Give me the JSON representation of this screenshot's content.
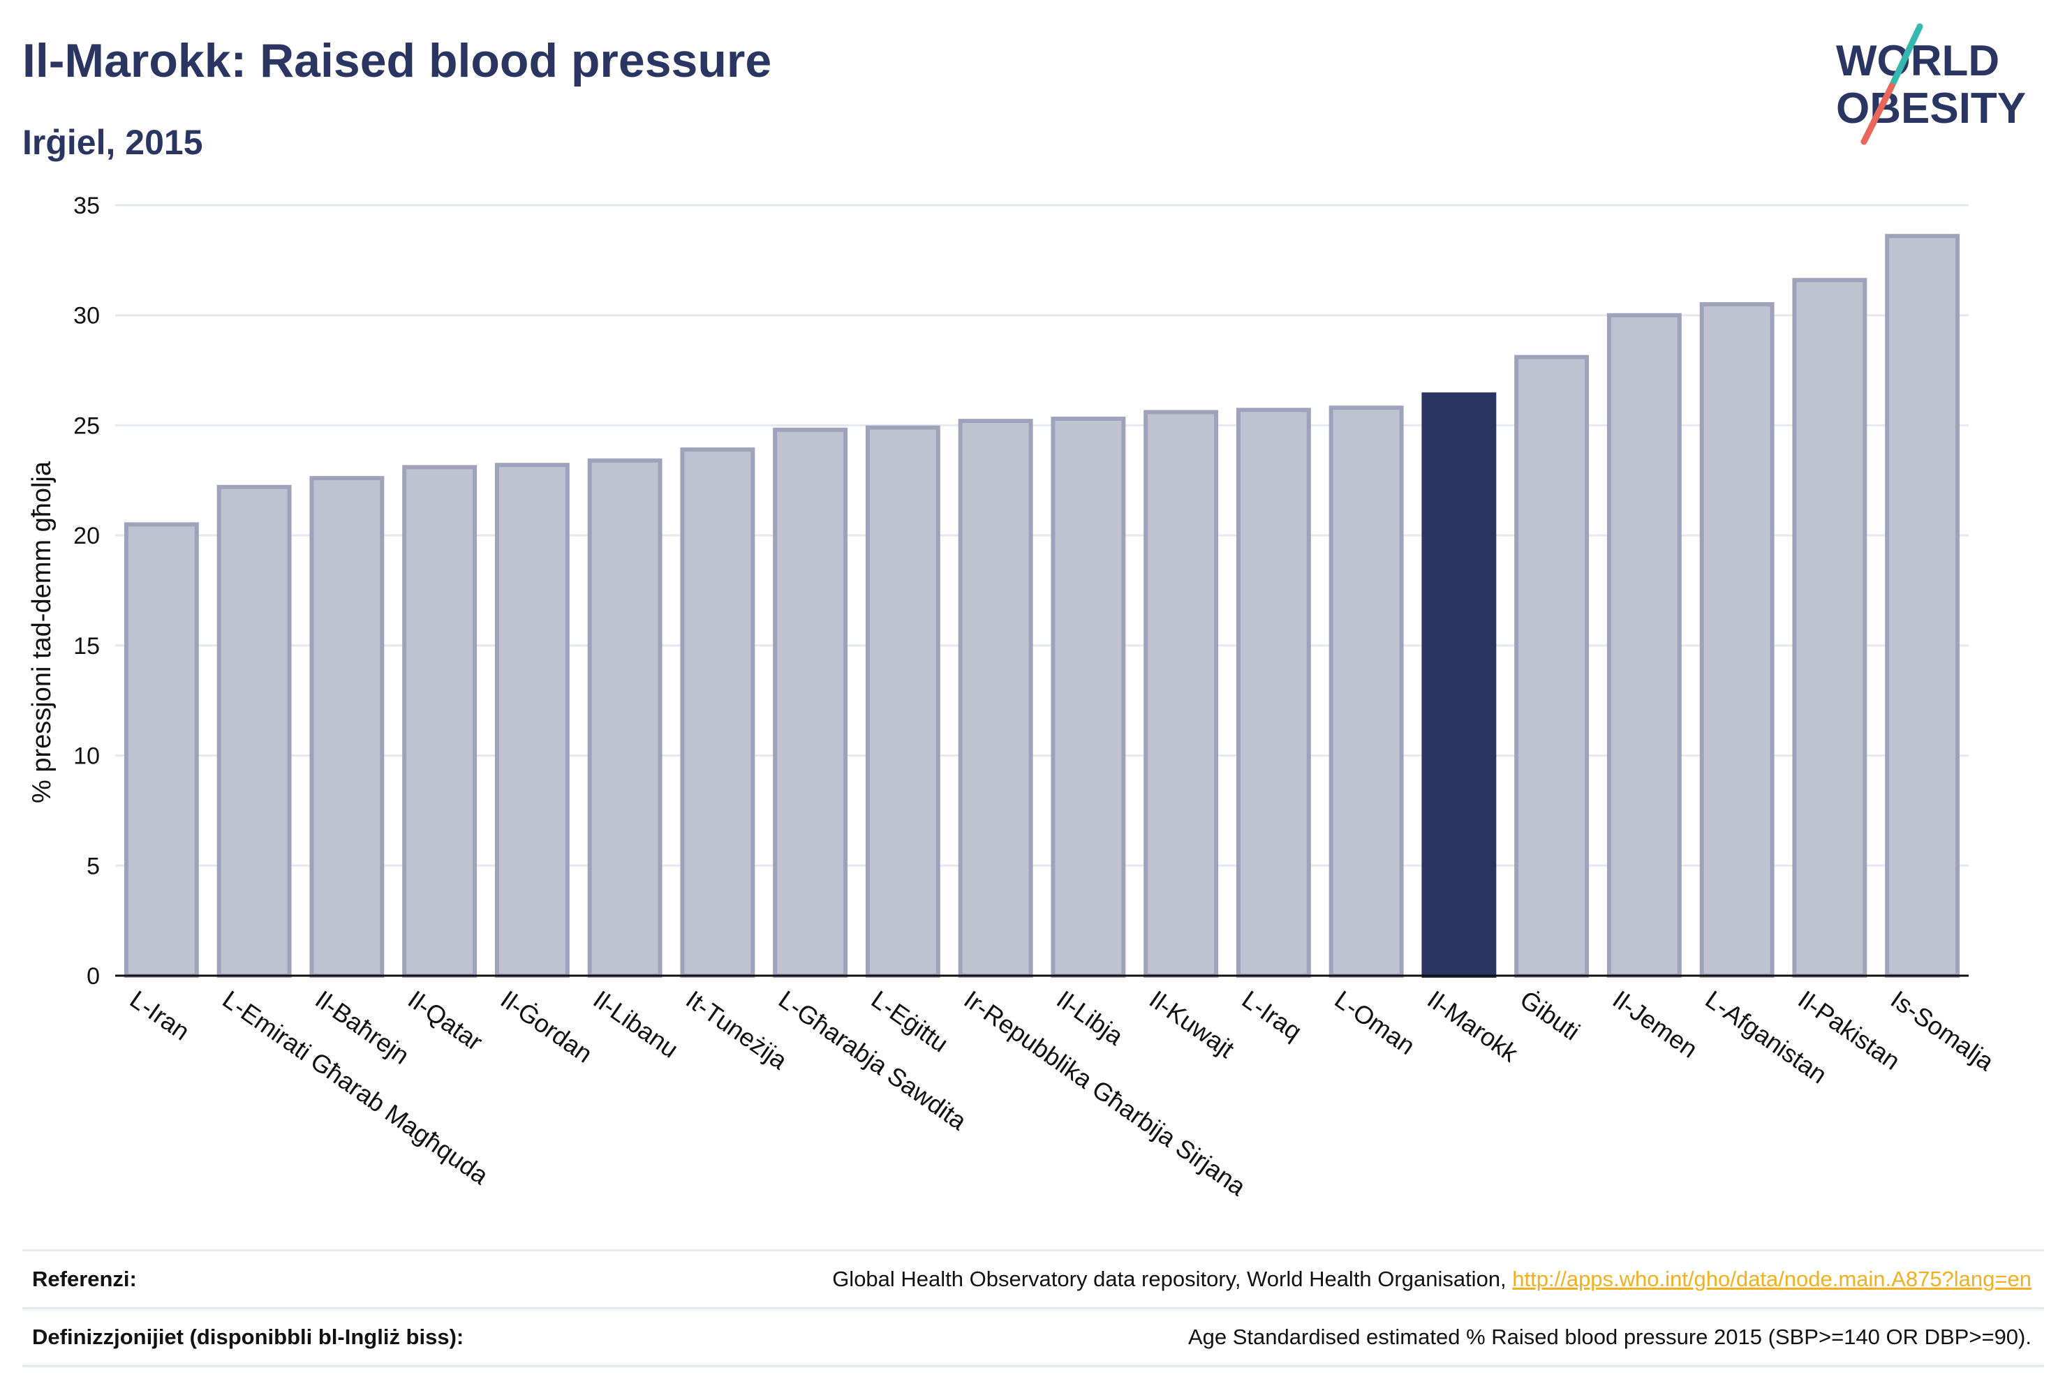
{
  "header": {
    "title": "Il-Marokk: Raised blood pressure",
    "subtitle": "Irġiel, 2015"
  },
  "logo": {
    "line1": "WORLD",
    "line2": "OBESITY",
    "colors": {
      "text": "#2b3561",
      "slash_teal": "#36b8b0",
      "slash_red": "#e8675a"
    }
  },
  "chart_data": {
    "type": "bar",
    "title": "",
    "xlabel": "",
    "ylabel": "% pressjoni tad-demm għolja",
    "ylim": [
      0,
      35
    ],
    "yticks": [
      0,
      5,
      10,
      15,
      20,
      25,
      30,
      35
    ],
    "grid": true,
    "categories": [
      "L-Iran",
      "L-Emirati Għarab Magħquda",
      "Il-Baħrejn",
      "Il-Qatar",
      "Il-Ġordan",
      "Il-Libanu",
      "It-Tuneżija",
      "L-Għarabja Sawdita",
      "L-Eġittu",
      "Ir-Repubblika Għarbija Sirjana",
      "Il-Libja",
      "Il-Kuwajt",
      "L-Iraq",
      "L-Oman",
      "Il-Marokk",
      "Ġibuti",
      "Il-Jemen",
      "L-Afganistan",
      "Il-Pakistan",
      "Is-Somalja"
    ],
    "values": [
      20.5,
      22.2,
      22.6,
      23.1,
      23.2,
      23.4,
      23.9,
      24.8,
      24.9,
      25.2,
      25.3,
      25.6,
      25.7,
      25.8,
      26.4,
      28.1,
      30.0,
      30.5,
      31.6,
      33.6
    ],
    "highlight": "Il-Marokk",
    "colors": {
      "bar": "#bfc3d0",
      "bar_border": "#9ea3bb",
      "highlight": "#2b3561",
      "grid": "#e6e8f0",
      "axis": "#111111"
    }
  },
  "references": {
    "source_label": "Referenzi:",
    "source_text": "Global Health Observatory data repository, World Health Organisation, ",
    "source_link": "http://apps.who.int/gho/data/node.main.A875?lang=en",
    "definition_label": "Definizzjonijiet (disponibbli bl-Ingliż biss):",
    "definition_text": "Age Standardised estimated % Raised blood pressure 2015 (SBP>=140 OR DBP>=90)."
  }
}
